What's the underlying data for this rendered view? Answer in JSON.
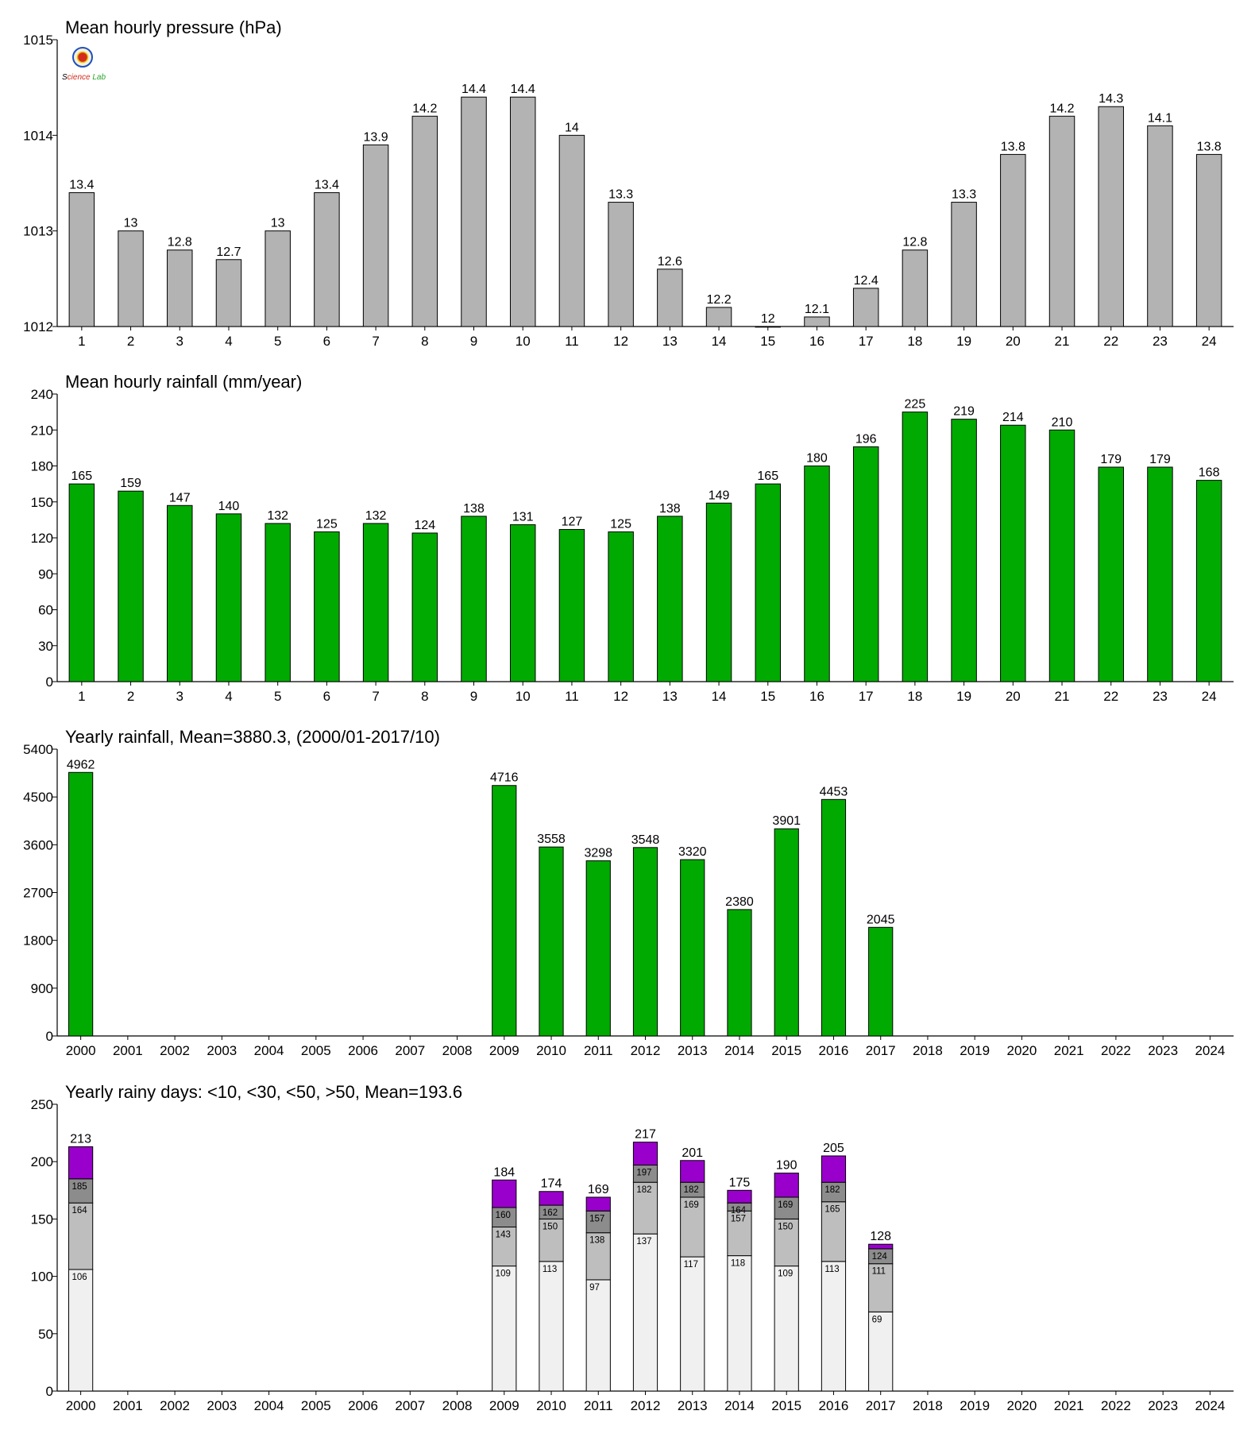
{
  "logo": {
    "text": "Science Lab",
    "colors": [
      "#1e4fbf",
      "#d52b1e",
      "#2aa52a"
    ]
  },
  "chart_data": [
    {
      "type": "bar",
      "title": "Mean hourly pressure (hPa)",
      "categories": [
        "1",
        "2",
        "3",
        "4",
        "5",
        "6",
        "7",
        "8",
        "9",
        "10",
        "11",
        "12",
        "13",
        "14",
        "15",
        "16",
        "17",
        "18",
        "19",
        "20",
        "21",
        "22",
        "23",
        "24"
      ],
      "values": [
        1013.4,
        1013.0,
        1012.8,
        1012.7,
        1013.0,
        1013.4,
        1013.9,
        1014.2,
        1014.4,
        1014.4,
        1014.0,
        1013.3,
        1012.6,
        1012.2,
        1012.0,
        1012.1,
        1012.4,
        1012.8,
        1013.3,
        1013.8,
        1014.2,
        1014.3,
        1014.1,
        1013.8
      ],
      "value_labels": [
        "13.4",
        "13",
        "12.8",
        "12.7",
        "13",
        "13.4",
        "13.9",
        "14.2",
        "14.4",
        "14.4",
        "14",
        "13.3",
        "12.6",
        "12.2",
        "12",
        "12.1",
        "12.4",
        "12.8",
        "13.3",
        "13.8",
        "14.2",
        "14.3",
        "14.1",
        "13.8"
      ],
      "ylim": [
        1012,
        1015
      ],
      "yticks": [
        1012,
        1013,
        1014,
        1015
      ],
      "color": "#b3b3b3"
    },
    {
      "type": "bar",
      "title": "Mean hourly rainfall (mm/year)",
      "categories": [
        "1",
        "2",
        "3",
        "4",
        "5",
        "6",
        "7",
        "8",
        "9",
        "10",
        "11",
        "12",
        "13",
        "14",
        "15",
        "16",
        "17",
        "18",
        "19",
        "20",
        "21",
        "22",
        "23",
        "24"
      ],
      "values": [
        165,
        159,
        147,
        140,
        132,
        125,
        132,
        124,
        138,
        131,
        127,
        125,
        138,
        149,
        165,
        180,
        196,
        225,
        219,
        214,
        210,
        179,
        179,
        168
      ],
      "value_labels": [
        "165",
        "159",
        "147",
        "140",
        "132",
        "125",
        "132",
        "124",
        "138",
        "131",
        "127",
        "125",
        "138",
        "149",
        "165",
        "180",
        "196",
        "225",
        "219",
        "214",
        "210",
        "179",
        "179",
        "168"
      ],
      "ylim": [
        0,
        240
      ],
      "yticks": [
        0,
        30,
        60,
        90,
        120,
        150,
        180,
        210,
        240
      ],
      "color": "#00aa00"
    },
    {
      "type": "bar",
      "title": "Yearly rainfall, Mean=3880.3, (2000/01-2017/10)",
      "categories": [
        "2000",
        "2001",
        "2002",
        "2003",
        "2004",
        "2005",
        "2006",
        "2007",
        "2008",
        "2009",
        "2010",
        "2011",
        "2012",
        "2013",
        "2014",
        "2015",
        "2016",
        "2017",
        "2018",
        "2019",
        "2020",
        "2021",
        "2022",
        "2023",
        "2024"
      ],
      "values": [
        4962,
        null,
        null,
        null,
        null,
        null,
        null,
        null,
        null,
        4716,
        3558,
        3298,
        3548,
        3320,
        2380,
        3901,
        4453,
        2045,
        null,
        null,
        null,
        null,
        null,
        null,
        null
      ],
      "value_labels": [
        "4962",
        "",
        "",
        "",
        "",
        "",
        "",
        "",
        "",
        "4716",
        "3558",
        "3298",
        "3548",
        "3320",
        "2380",
        "3901",
        "4453",
        "2045",
        "",
        "",
        "",
        "",
        "",
        "",
        ""
      ],
      "ylim": [
        0,
        5400
      ],
      "yticks": [
        0,
        900,
        1800,
        2700,
        3600,
        4500,
        5400
      ],
      "color": "#00aa00"
    },
    {
      "type": "bar",
      "stacked": true,
      "title": "Yearly rainy days: <10, <30, <50, >50, Mean=193.6",
      "categories": [
        "2000",
        "2001",
        "2002",
        "2003",
        "2004",
        "2005",
        "2006",
        "2007",
        "2008",
        "2009",
        "2010",
        "2011",
        "2012",
        "2013",
        "2014",
        "2015",
        "2016",
        "2017",
        "2018",
        "2019",
        "2020",
        "2021",
        "2022",
        "2023",
        "2024"
      ],
      "cumulative": [
        [
          106,
          164,
          185,
          213
        ],
        null,
        null,
        null,
        null,
        null,
        null,
        null,
        null,
        [
          109,
          143,
          160,
          184
        ],
        [
          113,
          150,
          162,
          174
        ],
        [
          97,
          138,
          157,
          169
        ],
        [
          137,
          182,
          197,
          217
        ],
        [
          117,
          169,
          182,
          201
        ],
        [
          118,
          157,
          164,
          175
        ],
        [
          109,
          150,
          169,
          190
        ],
        [
          113,
          165,
          182,
          205
        ],
        [
          69,
          111,
          124,
          128
        ],
        null,
        null,
        null,
        null,
        null,
        null,
        null
      ],
      "segment_colors": [
        "#f0f0f0",
        "#bebebe",
        "#8c8c8c",
        "#9900cc"
      ],
      "ylim": [
        0,
        250
      ],
      "yticks": [
        0,
        50,
        100,
        150,
        200,
        250
      ]
    }
  ]
}
